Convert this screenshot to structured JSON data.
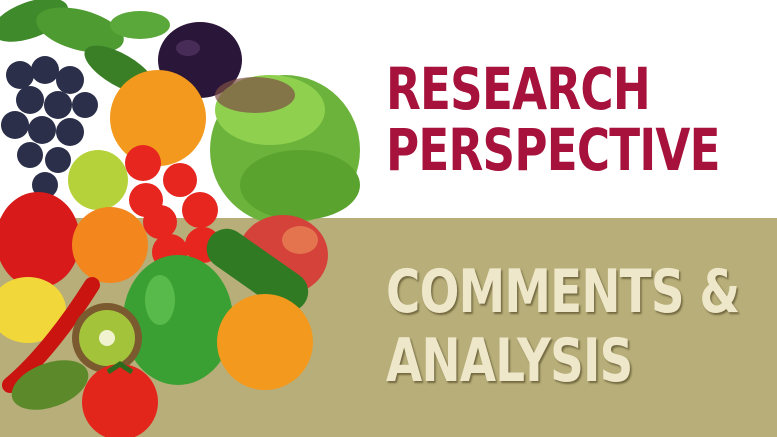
{
  "title": {
    "line1": "RESEARCH",
    "line2": "PERSPECTIVE"
  },
  "subtitle": {
    "line1": "COMMENTS &",
    "line2": "ANALYSIS"
  },
  "colors": {
    "title": "#a6123c",
    "subtitle": "#efe7c9",
    "lower_band": "#b7ae79",
    "upper_band": "#ffffff"
  },
  "image": {
    "subject": "fruits-and-vegetables-pile"
  }
}
